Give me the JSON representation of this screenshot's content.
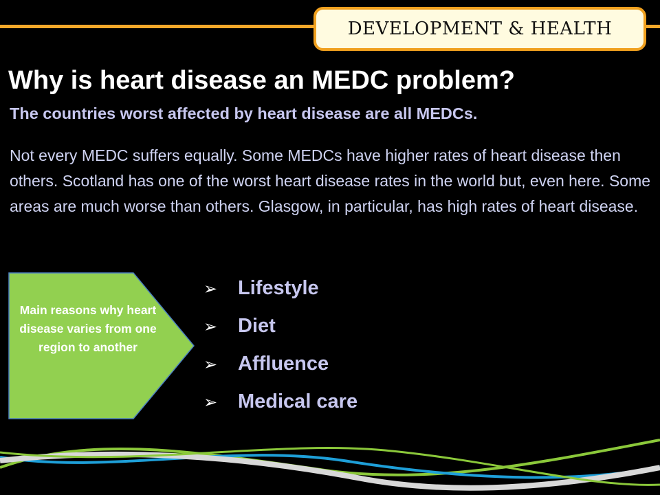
{
  "header": {
    "tag": "DEVELOPMENT & HEALTH"
  },
  "slide": {
    "title": "Why is heart disease an MEDC problem?",
    "subtitle": "The countries worst affected by heart disease are all MEDCs.",
    "body": "Not every MEDC suffers equally.  Some MEDCs have higher rates of heart disease then others.  Scotland has one of the worst heart disease rates in the world but, even here. Some areas are much worse than others.  Glasgow, in particular, has high rates of heart disease.",
    "callout": "Main reasons why heart disease varies from one region to another",
    "reasons": [
      "Lifestyle",
      "Diet",
      "Affluence",
      "Medical care"
    ]
  },
  "icons": {
    "bullet": "arrowhead-bullet-icon",
    "decoration": "wave-lines"
  },
  "colors": {
    "background": "#000000",
    "accent_orange": "#f0a01e",
    "header_fill": "#fffbe0",
    "callout_green": "#92d050",
    "subtitle_lavender": "#c7c7ef",
    "wave_grey": "#d8d8d8",
    "wave_blue": "#1e9fd8",
    "wave_green": "#8bc83a"
  }
}
